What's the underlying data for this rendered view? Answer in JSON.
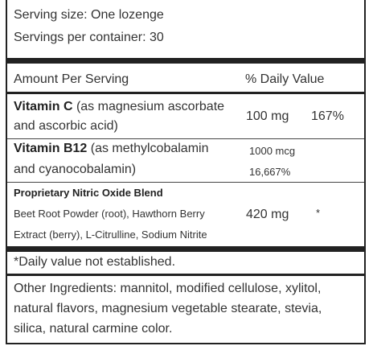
{
  "serving": {
    "size": "Serving size: One lozenge",
    "per_container": "Servings per container: 30"
  },
  "header": {
    "amount": "Amount Per Serving",
    "daily_value": "% Daily Value"
  },
  "nutrients": [
    {
      "name": "Vitamin C",
      "desc_line1": "(as magnesium ascorbate",
      "desc_line2": "and ascorbic acid)",
      "amount": "100 mg",
      "dv": "167%"
    },
    {
      "name": "Vitamin B12",
      "desc_line1": "(as methylcobalamin",
      "desc_line2": "and cyanocobalamin)",
      "amount": "1000 mcg",
      "dv": "16,667%"
    }
  ],
  "blend": {
    "name": "Proprietary Nitric Oxide Blend",
    "line1": "Beet Root Powder (root), Hawthorn Berry",
    "line2": "Extract (berry), L-Citrulline, Sodium Nitrite",
    "amount": "420 mg",
    "dv": "*"
  },
  "footnote": "*Daily value not established.",
  "other_ingredients": {
    "line1": "Other Ingredients: mannitol, modified cellulose, xylitol,",
    "line2": "natural flavors, magnesium vegetable stearate, stevia,",
    "line3": "silica, natural carmine color."
  }
}
